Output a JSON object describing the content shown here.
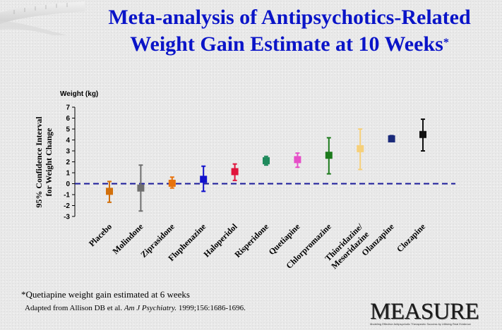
{
  "slide": {
    "title_line1": "Meta-analysis of Antipsychotics-Related",
    "title_line2": "Weight Gain Estimate at 10 Weeks",
    "title_mark": "*",
    "footnote": "*Quetiapine weight gain estimated at 6 weeks",
    "citation_pre": "Adapted from Allison DB et al. ",
    "citation_journal": "Am J Psychiatry.",
    "citation_post": " 1999;156:1686-1696.",
    "logo": "MEASURE",
    "logo_tagline": "Modeling Effective Antipsychotic Therapeutic Success by Utilizing Real Evidence"
  },
  "chart_data": {
    "type": "errorbar",
    "title": "",
    "ylabel_top": "Weight (kg)",
    "ylabel_line1": "95% Confidence Interval",
    "ylabel_line2": "for Weight Change",
    "ylim": [
      -3,
      7
    ],
    "yticks": [
      7,
      6,
      5,
      4,
      3,
      2,
      1,
      0,
      -1,
      -2,
      -3
    ],
    "reference_line": 0,
    "grid": false,
    "categories": [
      {
        "label": "Placebo",
        "label2": "",
        "mean": -0.7,
        "low": -1.7,
        "high": 0.2,
        "color": "#d2700c"
      },
      {
        "label": "Molindone",
        "label2": "",
        "mean": -0.4,
        "low": -2.5,
        "high": 1.7,
        "color": "#6f6f6f"
      },
      {
        "label": "Ziprasidone",
        "label2": "",
        "mean": 0.04,
        "low": -0.4,
        "high": 0.6,
        "color": "#e8720c"
      },
      {
        "label": "Fluphenazine",
        "label2": "",
        "mean": 0.4,
        "low": -0.7,
        "high": 1.6,
        "color": "#1111cc"
      },
      {
        "label": "Haloperidol",
        "label2": "",
        "mean": 1.1,
        "low": 0.3,
        "high": 1.8,
        "color": "#e0143c"
      },
      {
        "label": "Risperidone",
        "label2": "",
        "mean": 2.1,
        "low": 1.7,
        "high": 2.5,
        "color": "#1f8a5c"
      },
      {
        "label": "Quetiapine",
        "label2": "",
        "mean": 2.2,
        "low": 1.5,
        "high": 2.8,
        "color": "#e64fc8"
      },
      {
        "label": "Chlorpromazine",
        "label2": "",
        "mean": 2.6,
        "low": 0.9,
        "high": 4.2,
        "color": "#1c7a1c"
      },
      {
        "label": "Thioridazine/",
        "label2": "Mesoridazine",
        "mean": 3.2,
        "low": 1.3,
        "high": 5.0,
        "color": "#f6d07a"
      },
      {
        "label": "Olanzapine",
        "label2": "",
        "mean": 4.1,
        "low": 3.9,
        "high": 4.4,
        "color": "#1a2a7a"
      },
      {
        "label": "Clozapine",
        "label2": "",
        "mean": 4.5,
        "low": 3.0,
        "high": 5.9,
        "color": "#111111"
      }
    ]
  }
}
